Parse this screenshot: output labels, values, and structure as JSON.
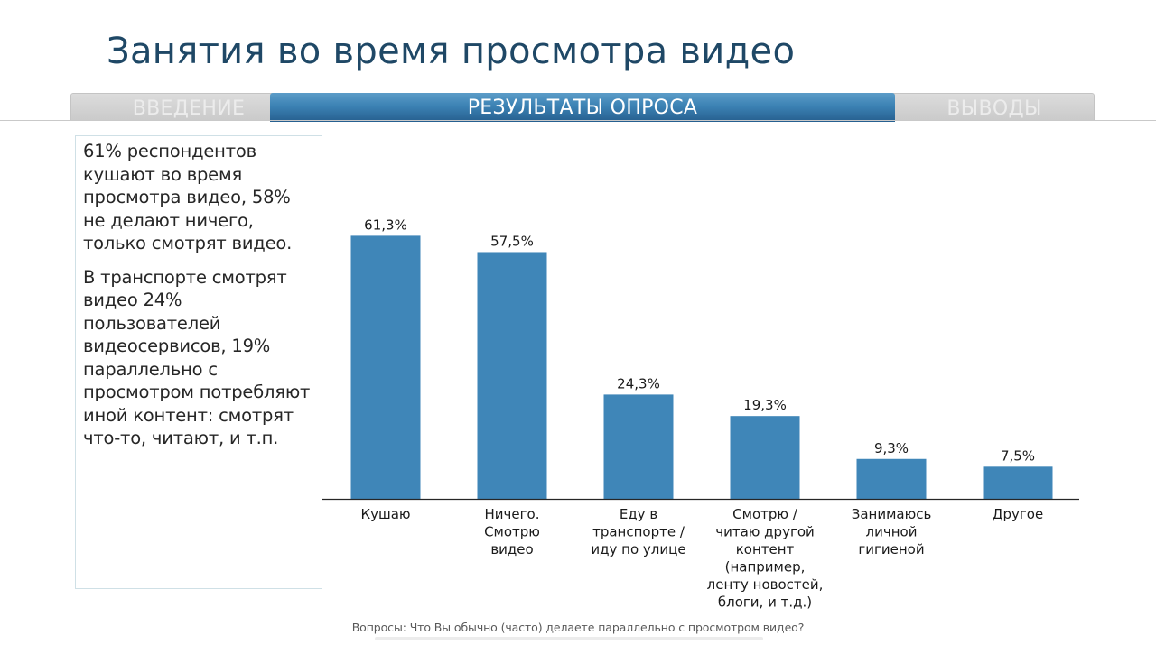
{
  "title": "Занятия во время просмотра видео",
  "tabs": [
    {
      "label": "Введение",
      "active": false
    },
    {
      "label": "Результаты опроса",
      "active": true
    },
    {
      "label": "Выводы",
      "active": false
    }
  ],
  "summary": {
    "paragraph1": "61% респондентов кушают во время просмотра видео, 58% не делают ничего, только смотрят видео.",
    "paragraph2": "В транспорте смотрят видео 24% пользователей видеосервисов, 19% параллельно с просмотром потребляют иной контент: смотрят что-то, читают, и т.п."
  },
  "colors": {
    "bar": "#3f86b8",
    "title": "#1f4866",
    "tab_active": "#3c82b4"
  },
  "chart_data": {
    "type": "bar",
    "categories": [
      [
        "Кушаю"
      ],
      [
        "Ничего.",
        "Смотрю",
        "видео"
      ],
      [
        "Еду в",
        "транспорте /",
        "иду по улице"
      ],
      [
        "Смотрю /",
        "читаю другой",
        "контент",
        "(например,",
        "ленту новостей,",
        "блоги, и т.д.)"
      ],
      [
        "Занимаюсь",
        "личной",
        "гигиеной"
      ],
      [
        "Другое"
      ]
    ],
    "values": [
      61.3,
      57.5,
      24.3,
      19.3,
      9.3,
      7.5
    ],
    "data_labels": [
      "61,3%",
      "57,5%",
      "24,3%",
      "19,3%",
      "9,3%",
      "7,5%"
    ],
    "ylim": [
      0,
      70
    ],
    "grid": false,
    "legend": "none"
  },
  "footer": "Вопросы: Что Вы обычно (часто) делаете параллельно с просмотром видео?"
}
